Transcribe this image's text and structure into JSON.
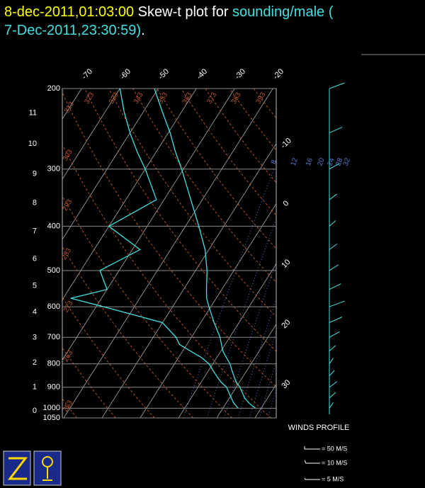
{
  "header": {
    "time": "8-dec-2011,01:03:00",
    "middle": " Skew-t plot for ",
    "source": "sounding/male (",
    "source_time": "7-Dec-2011,23:30:59)",
    "end": "."
  },
  "chart_data": {
    "type": "skewt",
    "pressure": [
      1000,
      975,
      950,
      925,
      900,
      875,
      850,
      825,
      800,
      775,
      750,
      725,
      700,
      650,
      600,
      575,
      550,
      500,
      450,
      400,
      350,
      300,
      275,
      250,
      225,
      200
    ],
    "series": [
      {
        "name": "temperature",
        "color": "#40e0e0",
        "values": [
          28.5,
          26,
          24,
          22.5,
          21,
          19,
          17.5,
          16,
          14.5,
          12.5,
          10.5,
          9,
          7.5,
          3.5,
          -0.5,
          -2.5,
          -4,
          -7,
          -11,
          -16.5,
          -23,
          -30.5,
          -35,
          -39.5,
          -45,
          -51
        ]
      },
      {
        "name": "dewpoint",
        "color": "#40e0e0",
        "values": [
          24,
          22,
          20.5,
          19,
          17.5,
          15,
          13,
          11,
          9,
          6,
          2,
          -2,
          -4,
          -10,
          -28,
          -38,
          -30,
          -35,
          -28,
          -40,
          -32,
          -40,
          -45,
          -50,
          -55,
          -60
        ]
      }
    ],
    "ylim": [
      200,
      1050
    ],
    "yticks": [
      200,
      300,
      400,
      500,
      600,
      700,
      800,
      900,
      1000,
      1050
    ],
    "height_ticks": [
      0,
      1,
      2,
      3,
      4,
      5,
      6,
      7,
      8,
      9,
      10,
      11
    ],
    "isotherm_ticks": [
      -70,
      -60,
      -50,
      -40,
      -30,
      -20,
      -10,
      0,
      10,
      20,
      30
    ],
    "theta_ticks": [
      253,
      263,
      273,
      283,
      293,
      303,
      313,
      323,
      333,
      343,
      353,
      363,
      373,
      383,
      393
    ],
    "mixing_ticks": [
      8,
      12,
      16,
      20,
      24,
      28,
      32
    ],
    "wind": {
      "title": "WINDS PROFILE",
      "color": "#40e0e0",
      "pressure": [
        1000,
        950,
        900,
        850,
        800,
        750,
        700,
        650,
        600,
        550,
        500,
        450,
        400,
        350,
        300,
        250,
        200
      ],
      "speed": [
        3,
        5,
        6,
        4,
        3,
        5,
        8,
        10,
        12,
        9,
        7,
        6,
        5,
        6,
        8,
        10,
        12
      ],
      "legend": [
        "= 50 M/S",
        "= 10 M/S",
        "= 5 M/S"
      ]
    }
  }
}
